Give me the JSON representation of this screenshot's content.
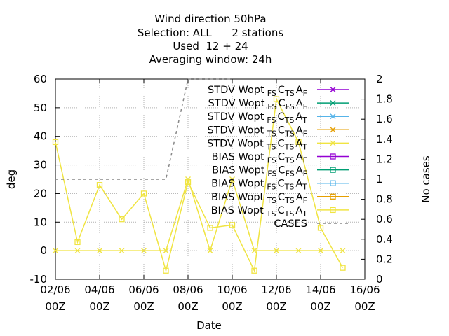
{
  "chart_data": {
    "type": "line",
    "title_lines": [
      "Wind direction 50hPa",
      "Selection: ALL      2 stations",
      "Used  12 + 24",
      "Averaging window: 24h"
    ],
    "xlabel": "Date",
    "ylabel": "deg",
    "y2label": "No cases",
    "xlim": [
      "2023-06-02",
      "2023-06-16"
    ],
    "ylim": [
      -10,
      60
    ],
    "y2lim": [
      0,
      2
    ],
    "x_ticks": [
      {
        "date": "2023-06-02",
        "l1": "02/06",
        "l2": "00Z"
      },
      {
        "date": "2023-06-04",
        "l1": "04/06",
        "l2": "00Z"
      },
      {
        "date": "2023-06-06",
        "l1": "06/06",
        "l2": "00Z"
      },
      {
        "date": "2023-06-08",
        "l1": "08/06",
        "l2": "00Z"
      },
      {
        "date": "2023-06-10",
        "l1": "10/06",
        "l2": "00Z"
      },
      {
        "date": "2023-06-12",
        "l1": "12/06",
        "l2": "00Z"
      },
      {
        "date": "2023-06-14",
        "l1": "14/06",
        "l2": "00Z"
      },
      {
        "date": "2023-06-16",
        "l1": "16/06",
        "l2": "00Z"
      }
    ],
    "y_ticks": [
      "-10",
      "0",
      "10",
      "20",
      "30",
      "40",
      "50",
      "60"
    ],
    "y2_ticks": [
      "0",
      "0.2",
      "0.4",
      "0.6",
      "0.8",
      "1",
      "1.2",
      "1.4",
      "1.6",
      "1.8",
      "2"
    ],
    "grid": true,
    "legend_position": "top-right",
    "legend": [
      {
        "label": "STDV Wopt",
        "s1": "FS",
        "mid": "C",
        "s2": "TS",
        "end": "A",
        "s3": "F",
        "color": "#9400d3",
        "marker": "x"
      },
      {
        "label": "STDV Wopt",
        "s1": "FS",
        "mid": "C",
        "s2": "FS",
        "end": "A",
        "s3": "F",
        "color": "#009e73",
        "marker": "x"
      },
      {
        "label": "STDV Wopt",
        "s1": "FS",
        "mid": "C",
        "s2": "TS",
        "end": "A",
        "s3": "T",
        "color": "#56b4e9",
        "marker": "x"
      },
      {
        "label": "STDV Wopt",
        "s1": "TS",
        "mid": "C",
        "s2": "TS",
        "end": "A",
        "s3": "F",
        "color": "#e69f00",
        "marker": "x"
      },
      {
        "label": "STDV Wopt",
        "s1": "TS",
        "mid": "C",
        "s2": "TS",
        "end": "A",
        "s3": "T",
        "color": "#f0e442",
        "marker": "x"
      },
      {
        "label": "BIAS Wopt",
        "s1": "FS",
        "mid": "C",
        "s2": "TS",
        "end": "A",
        "s3": "F",
        "color": "#9400d3",
        "marker": "square"
      },
      {
        "label": "BIAS Wopt",
        "s1": "FS",
        "mid": "C",
        "s2": "FS",
        "end": "A",
        "s3": "F",
        "color": "#009e73",
        "marker": "square"
      },
      {
        "label": "BIAS Wopt",
        "s1": "FS",
        "mid": "C",
        "s2": "TS",
        "end": "A",
        "s3": "T",
        "color": "#56b4e9",
        "marker": "square"
      },
      {
        "label": "BIAS Wopt",
        "s1": "TS",
        "mid": "C",
        "s2": "TS",
        "end": "A",
        "s3": "F",
        "color": "#e69f00",
        "marker": "square"
      },
      {
        "label": "BIAS Wopt",
        "s1": "TS",
        "mid": "C",
        "s2": "TS",
        "end": "A",
        "s3": "T",
        "color": "#f0e442",
        "marker": "square"
      },
      {
        "label": "CASES",
        "s1": "",
        "mid": "",
        "s2": "",
        "end": "",
        "s3": "",
        "color": "#888888",
        "marker": "dash"
      }
    ],
    "series": [
      {
        "kind": "stdv",
        "color": "#f0e442",
        "x": [
          "2023-06-02",
          "2023-06-03",
          "2023-06-04",
          "2023-06-05",
          "2023-06-06",
          "2023-06-07",
          "2023-06-08",
          "2023-06-09",
          "2023-06-10",
          "2023-06-11",
          "2023-06-12",
          "2023-06-13",
          "2023-06-14",
          "2023-06-15"
        ],
        "y": [
          0,
          0,
          0,
          0,
          0,
          0,
          25,
          0,
          25,
          0,
          0,
          0,
          0,
          0
        ]
      },
      {
        "kind": "bias",
        "color": "#f0e442",
        "x": [
          "2023-06-02",
          "2023-06-03",
          "2023-06-04",
          "2023-06-05",
          "2023-06-06",
          "2023-06-07",
          "2023-06-08",
          "2023-06-09",
          "2023-06-10",
          "2023-06-11",
          "2023-06-12",
          "2023-06-13",
          "2023-06-14",
          "2023-06-15"
        ],
        "y": [
          38,
          3,
          23,
          11,
          20,
          -7,
          24,
          8,
          9,
          -7,
          53,
          38,
          8,
          -6
        ]
      },
      {
        "kind": "cases",
        "color": "#888888",
        "x": [
          "2023-06-02",
          "2023-06-07",
          "2023-06-08",
          "2023-06-09",
          "2023-06-10"
        ],
        "y2": [
          1,
          1,
          2,
          2,
          2
        ]
      }
    ]
  }
}
